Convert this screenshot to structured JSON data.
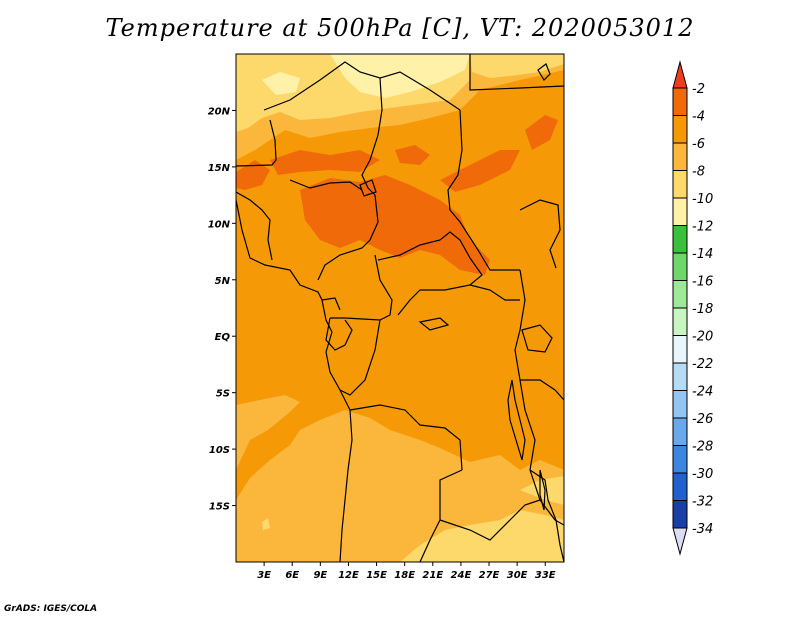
{
  "title": "Temperature at 500hPa [C], VT: 2020053012",
  "credit": "GrADS: IGES/COLA",
  "map": {
    "lon_range": [
      0,
      35
    ],
    "lat_range": [
      -20,
      25
    ],
    "lat_ticks": [
      {
        "value": 20,
        "label": "20N"
      },
      {
        "value": 15,
        "label": "15N"
      },
      {
        "value": 10,
        "label": "10N"
      },
      {
        "value": 5,
        "label": "5N"
      },
      {
        "value": 0,
        "label": "EQ"
      },
      {
        "value": -5,
        "label": "5S"
      },
      {
        "value": -10,
        "label": "10S"
      },
      {
        "value": -15,
        "label": "15S"
      }
    ],
    "lon_ticks": [
      {
        "value": 3,
        "label": "3E"
      },
      {
        "value": 6,
        "label": "6E"
      },
      {
        "value": 9,
        "label": "9E"
      },
      {
        "value": 12,
        "label": "12E"
      },
      {
        "value": 15,
        "label": "15E"
      },
      {
        "value": 18,
        "label": "18E"
      },
      {
        "value": 21,
        "label": "21E"
      },
      {
        "value": 24,
        "label": "24E"
      },
      {
        "value": 27,
        "label": "27E"
      },
      {
        "value": 30,
        "label": "30E"
      },
      {
        "value": 33,
        "label": "33E"
      }
    ]
  },
  "colorbar": {
    "levels": [
      {
        "label": "-2",
        "color": "#f06a0a"
      },
      {
        "label": "-4",
        "color": "#f59a06"
      },
      {
        "label": "-6",
        "color": "#fbb63c"
      },
      {
        "label": "-8",
        "color": "#fdd86a"
      },
      {
        "label": "-10",
        "color": "#fff2a8"
      },
      {
        "label": "-12",
        "color": "#3cbf3c"
      },
      {
        "label": "-14",
        "color": "#6fd66a"
      },
      {
        "label": "-16",
        "color": "#9ee89a"
      },
      {
        "label": "-18",
        "color": "#c8f5c2"
      },
      {
        "label": "-20",
        "color": "#e8f6fb"
      },
      {
        "label": "-22",
        "color": "#b5dbf5"
      },
      {
        "label": "-24",
        "color": "#93c5f0"
      },
      {
        "label": "-26",
        "color": "#6aa9e9"
      },
      {
        "label": "-28",
        "color": "#3d86e0"
      },
      {
        "label": "-30",
        "color": "#2160cf"
      },
      {
        "label": "-32",
        "color": "#1a3ea6"
      },
      {
        "label": "-34",
        "color": "#0d1a70"
      }
    ],
    "top_arrow_color": "#f03c1e",
    "bottom_arrow_color": "#dcdcf5"
  },
  "field_colors": {
    "warm_-2": "#f06a0a",
    "mid_-4": "#f59a06",
    "cool_-6": "#fbb63c",
    "cool_-8": "#fdd86a",
    "cold_-10": "#fff2a8"
  }
}
